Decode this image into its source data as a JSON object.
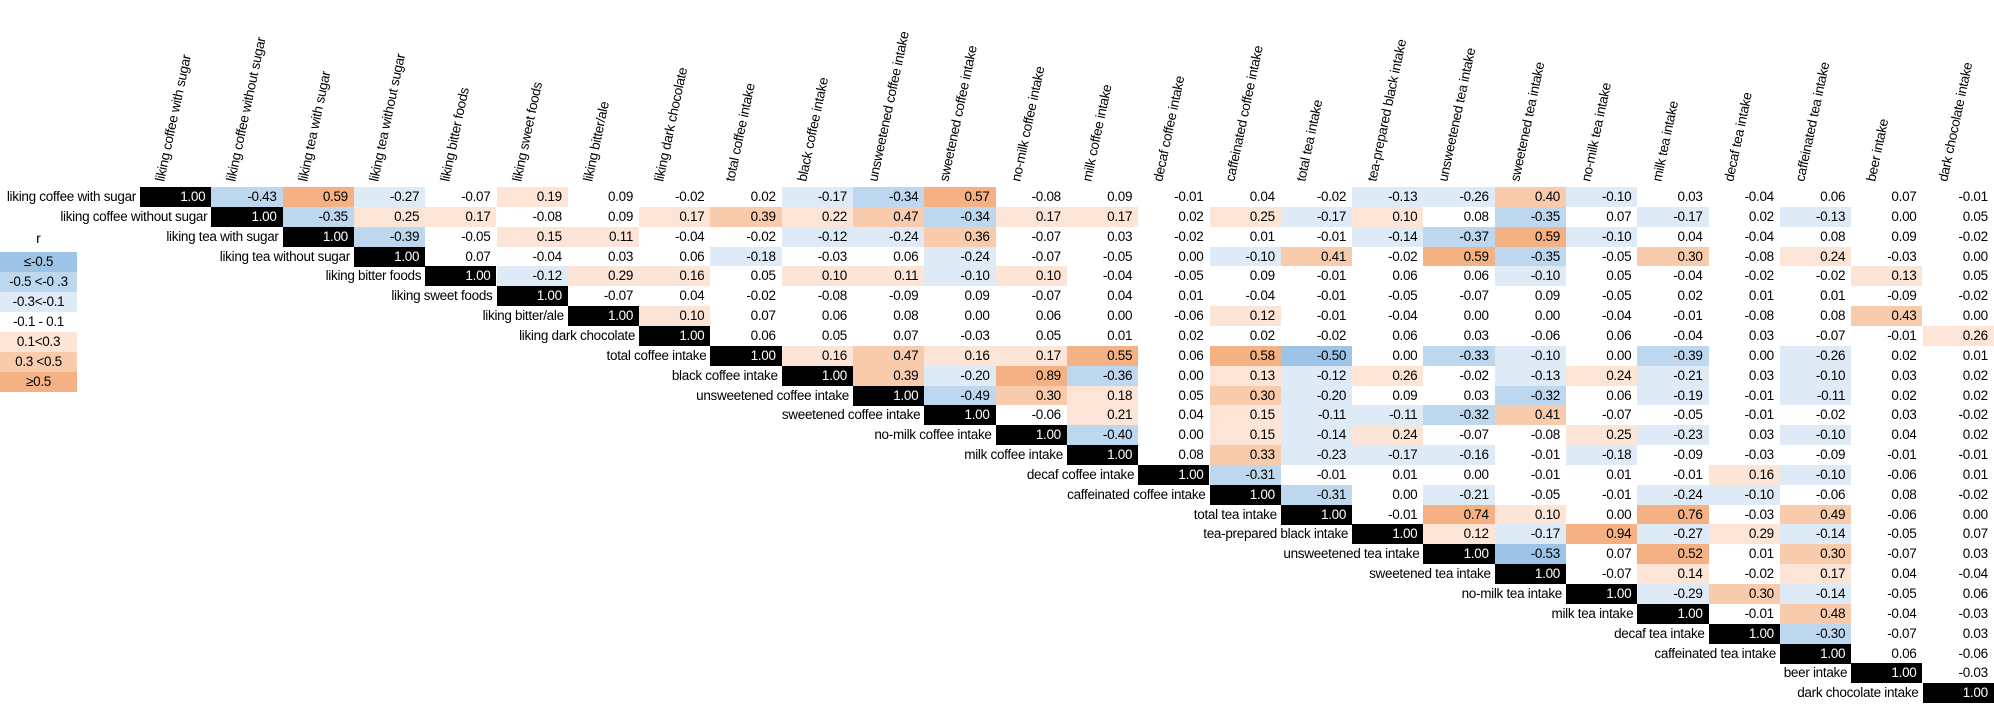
{
  "chart_data": {
    "type": "heatmap",
    "title": "",
    "variables": [
      "liking coffee with sugar",
      "liking coffee without sugar",
      "liking tea with sugar",
      "liking tea without sugar",
      "liking bitter foods",
      "liking sweet foods",
      "liking bitter/ale",
      "liking dark chocolate",
      "total coffee intake",
      "black coffee intake",
      "unsweetened coffee intake",
      "sweetened coffee intake",
      "no-milk coffee intake",
      "milk coffee intake",
      "decaf coffee intake",
      "caffeinated coffee intake",
      "total tea intake",
      "tea-prepared black intake",
      "unsweetened tea intake",
      "sweetened tea intake",
      "no-milk tea intake",
      "milk tea intake",
      "decaf tea intake",
      "caffeinated tea intake",
      "beer intake",
      "dark chocolate intake"
    ],
    "upper_triangle": [
      [
        "1.00",
        "-0.43",
        "0.59",
        "-0.27",
        "-0.07",
        "0.19",
        "0.09",
        "-0.02",
        "0.02",
        "-0.17",
        "-0.34",
        "0.57",
        "-0.08",
        "0.09",
        "-0.01",
        "0.04",
        "-0.02",
        "-0.13",
        "-0.26",
        "0.40",
        "-0.10",
        "0.03",
        "-0.04",
        "0.06",
        "0.07",
        "-0.01"
      ],
      [
        "1.00",
        "-0.35",
        "0.25",
        "0.17",
        "-0.08",
        "0.09",
        "0.17",
        "0.39",
        "0.22",
        "0.47",
        "-0.34",
        "0.17",
        "0.17",
        "0.02",
        "0.25",
        "-0.17",
        "0.10",
        "0.08",
        "-0.35",
        "0.07",
        "-0.17",
        "0.02",
        "-0.13",
        "0.00",
        "0.05"
      ],
      [
        "1.00",
        "-0.39",
        "-0.05",
        "0.15",
        "0.11",
        "-0.04",
        "-0.02",
        "-0.12",
        "-0.24",
        "0.36",
        "-0.07",
        "0.03",
        "-0.02",
        "0.01",
        "-0.01",
        "-0.14",
        "-0.37",
        "0.59",
        "-0.10",
        "0.04",
        "-0.04",
        "0.08",
        "0.09",
        "-0.02"
      ],
      [
        "1.00",
        "0.07",
        "-0.04",
        "0.03",
        "0.06",
        "-0.18",
        "-0.03",
        "0.06",
        "-0.24",
        "-0.07",
        "-0.05",
        "0.00",
        "-0.10",
        "0.41",
        "-0.02",
        "0.59",
        "-0.35",
        "-0.05",
        "0.30",
        "-0.08",
        "0.24",
        "-0.03",
        "0.00"
      ],
      [
        "1.00",
        "-0.12",
        "0.29",
        "0.16",
        "0.05",
        "0.10",
        "0.11",
        "-0.10",
        "0.10",
        "-0.04",
        "-0.05",
        "0.09",
        "-0.01",
        "0.06",
        "0.06",
        "-0.10",
        "0.05",
        "-0.04",
        "-0.02",
        "-0.02",
        "0.13",
        "0.05"
      ],
      [
        "1.00",
        "-0.07",
        "0.04",
        "-0.02",
        "-0.08",
        "-0.09",
        "0.09",
        "-0.07",
        "0.04",
        "0.01",
        "-0.04",
        "-0.01",
        "-0.05",
        "-0.07",
        "0.09",
        "-0.05",
        "0.02",
        "0.01",
        "0.01",
        "-0.09",
        "-0.02"
      ],
      [
        "1.00",
        "0.10",
        "0.07",
        "0.06",
        "0.08",
        "0.00",
        "0.06",
        "0.00",
        "-0.06",
        "0.12",
        "-0.01",
        "-0.04",
        "0.00",
        "0.00",
        "-0.04",
        "-0.01",
        "-0.08",
        "0.08",
        "0.43",
        "0.00"
      ],
      [
        "1.00",
        "0.06",
        "0.05",
        "0.07",
        "-0.03",
        "0.05",
        "0.01",
        "0.02",
        "0.02",
        "-0.02",
        "0.06",
        "0.03",
        "-0.06",
        "0.06",
        "-0.04",
        "0.03",
        "-0.07",
        "-0.01",
        "0.26"
      ],
      [
        "1.00",
        "0.16",
        "0.47",
        "0.16",
        "0.17",
        "0.55",
        "0.06",
        "0.58",
        "-0.50",
        "0.00",
        "-0.33",
        "-0.10",
        "0.00",
        "-0.39",
        "0.00",
        "-0.26",
        "0.02",
        "0.01"
      ],
      [
        "1.00",
        "0.39",
        "-0.20",
        "0.89",
        "-0.36",
        "0.00",
        "0.13",
        "-0.12",
        "0.26",
        "-0.02",
        "-0.13",
        "0.24",
        "-0.21",
        "0.03",
        "-0.10",
        "0.03",
        "0.02"
      ],
      [
        "1.00",
        "-0.49",
        "0.30",
        "0.18",
        "0.05",
        "0.30",
        "-0.20",
        "0.09",
        "0.03",
        "-0.32",
        "0.06",
        "-0.19",
        "-0.01",
        "-0.11",
        "0.02",
        "0.02"
      ],
      [
        "1.00",
        "-0.06",
        "0.21",
        "0.04",
        "0.15",
        "-0.11",
        "-0.11",
        "-0.32",
        "0.41",
        "-0.07",
        "-0.05",
        "-0.01",
        "-0.02",
        "0.03",
        "-0.02"
      ],
      [
        "1.00",
        "-0.40",
        "0.00",
        "0.15",
        "-0.14",
        "0.24",
        "-0.07",
        "-0.08",
        "0.25",
        "-0.23",
        "0.03",
        "-0.10",
        "0.04",
        "0.02"
      ],
      [
        "1.00",
        "0.08",
        "0.33",
        "-0.23",
        "-0.17",
        "-0.16",
        "-0.01",
        "-0.18",
        "-0.09",
        "-0.03",
        "-0.09",
        "-0.01",
        "-0.01"
      ],
      [
        "1.00",
        "-0.31",
        "-0.01",
        "0.01",
        "0.00",
        "-0.01",
        "0.01",
        "-0.01",
        "0.16",
        "-0.10",
        "-0.06",
        "0.01"
      ],
      [
        "1.00",
        "-0.31",
        "0.00",
        "-0.21",
        "-0.05",
        "-0.01",
        "-0.24",
        "-0.10",
        "-0.06",
        "0.08",
        "-0.02"
      ],
      [
        "1.00",
        "-0.01",
        "0.74",
        "0.10",
        "0.00",
        "0.76",
        "-0.03",
        "0.49",
        "-0.06",
        "0.00"
      ],
      [
        "1.00",
        "0.12",
        "-0.17",
        "0.94",
        "-0.27",
        "0.29",
        "-0.14",
        "-0.05",
        "0.07"
      ],
      [
        "1.00",
        "-0.53",
        "0.07",
        "0.52",
        "0.01",
        "0.30",
        "-0.07",
        "0.03"
      ],
      [
        "1.00",
        "-0.07",
        "0.14",
        "-0.02",
        "0.17",
        "0.04",
        "-0.04"
      ],
      [
        "1.00",
        "-0.29",
        "0.30",
        "-0.14",
        "-0.05",
        "0.06"
      ],
      [
        "1.00",
        "-0.01",
        "0.48",
        "-0.04",
        "-0.03"
      ],
      [
        "1.00",
        "-0.30",
        "-0.07",
        "0.03"
      ],
      [
        "1.00",
        "0.06",
        "-0.06"
      ],
      [
        "1.00",
        "-0.03"
      ],
      [
        "1.00"
      ]
    ],
    "legend": {
      "title": "r",
      "bins": [
        {
          "label": "≤-0.5",
          "color": "#9dc3e6"
        },
        {
          "label": "-0.5 <-0 .3",
          "color": "#bdd7ee"
        },
        {
          "label": "-0.3<-0.1",
          "color": "#deebf7"
        },
        {
          "label": "-0.1 - 0.1",
          "color": "#ffffff"
        },
        {
          "label": "0.1<0.3",
          "color": "#fce4d6"
        },
        {
          "label": "0.3 <0.5",
          "color": "#f8cbad"
        },
        {
          "label": "≥0.5",
          "color": "#f4b183"
        }
      ],
      "placement": "left"
    },
    "diagonal_color": "#000000"
  }
}
